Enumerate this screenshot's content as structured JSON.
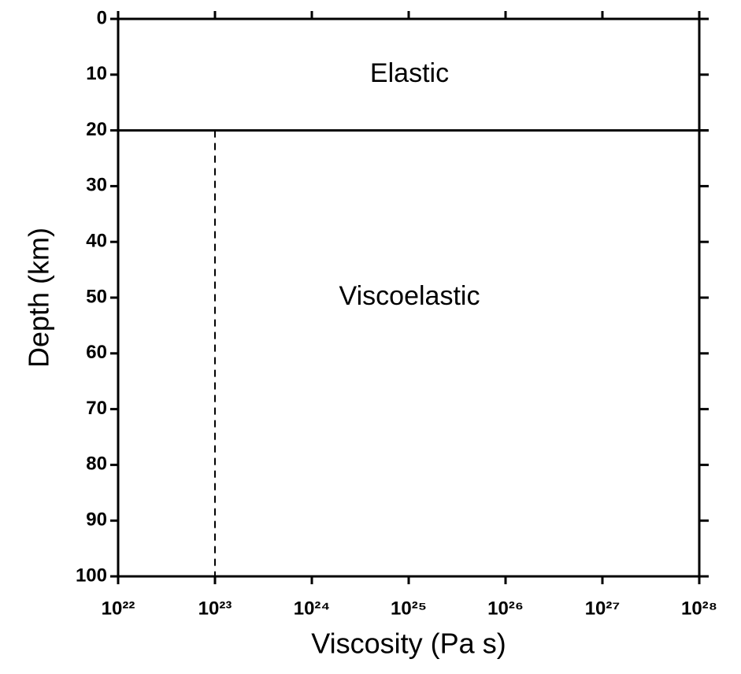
{
  "chart_data": {
    "type": "layers",
    "xlabel": "Viscosity (Pa s)",
    "ylabel": "Depth (km)",
    "xscale": "log",
    "xlim": [
      1e+22,
      1e+28
    ],
    "xticks": [
      {
        "value": 1e+22,
        "label": "10²²"
      },
      {
        "value": 1e+23,
        "label": "10²³"
      },
      {
        "value": 1e+24,
        "label": "10²⁴"
      },
      {
        "value": 1e+25,
        "label": "10²⁵"
      },
      {
        "value": 1e+26,
        "label": "10²⁶"
      },
      {
        "value": 1e+27,
        "label": "10²⁷"
      },
      {
        "value": 1e+28,
        "label": "10²⁸"
      }
    ],
    "ylim": [
      0,
      100
    ],
    "y_inverted": true,
    "yticks": [
      0,
      10,
      20,
      30,
      40,
      50,
      60,
      70,
      80,
      90,
      100
    ],
    "regions": [
      {
        "label": "Elastic",
        "top": 0,
        "bottom": 20
      },
      {
        "label": "Viscoelastic",
        "top": 20,
        "bottom": 100
      }
    ],
    "series": [
      {
        "x": [
          1e+23,
          1e+23
        ],
        "values": [
          20,
          100
        ],
        "color": "#000000",
        "dashed": true
      }
    ]
  }
}
